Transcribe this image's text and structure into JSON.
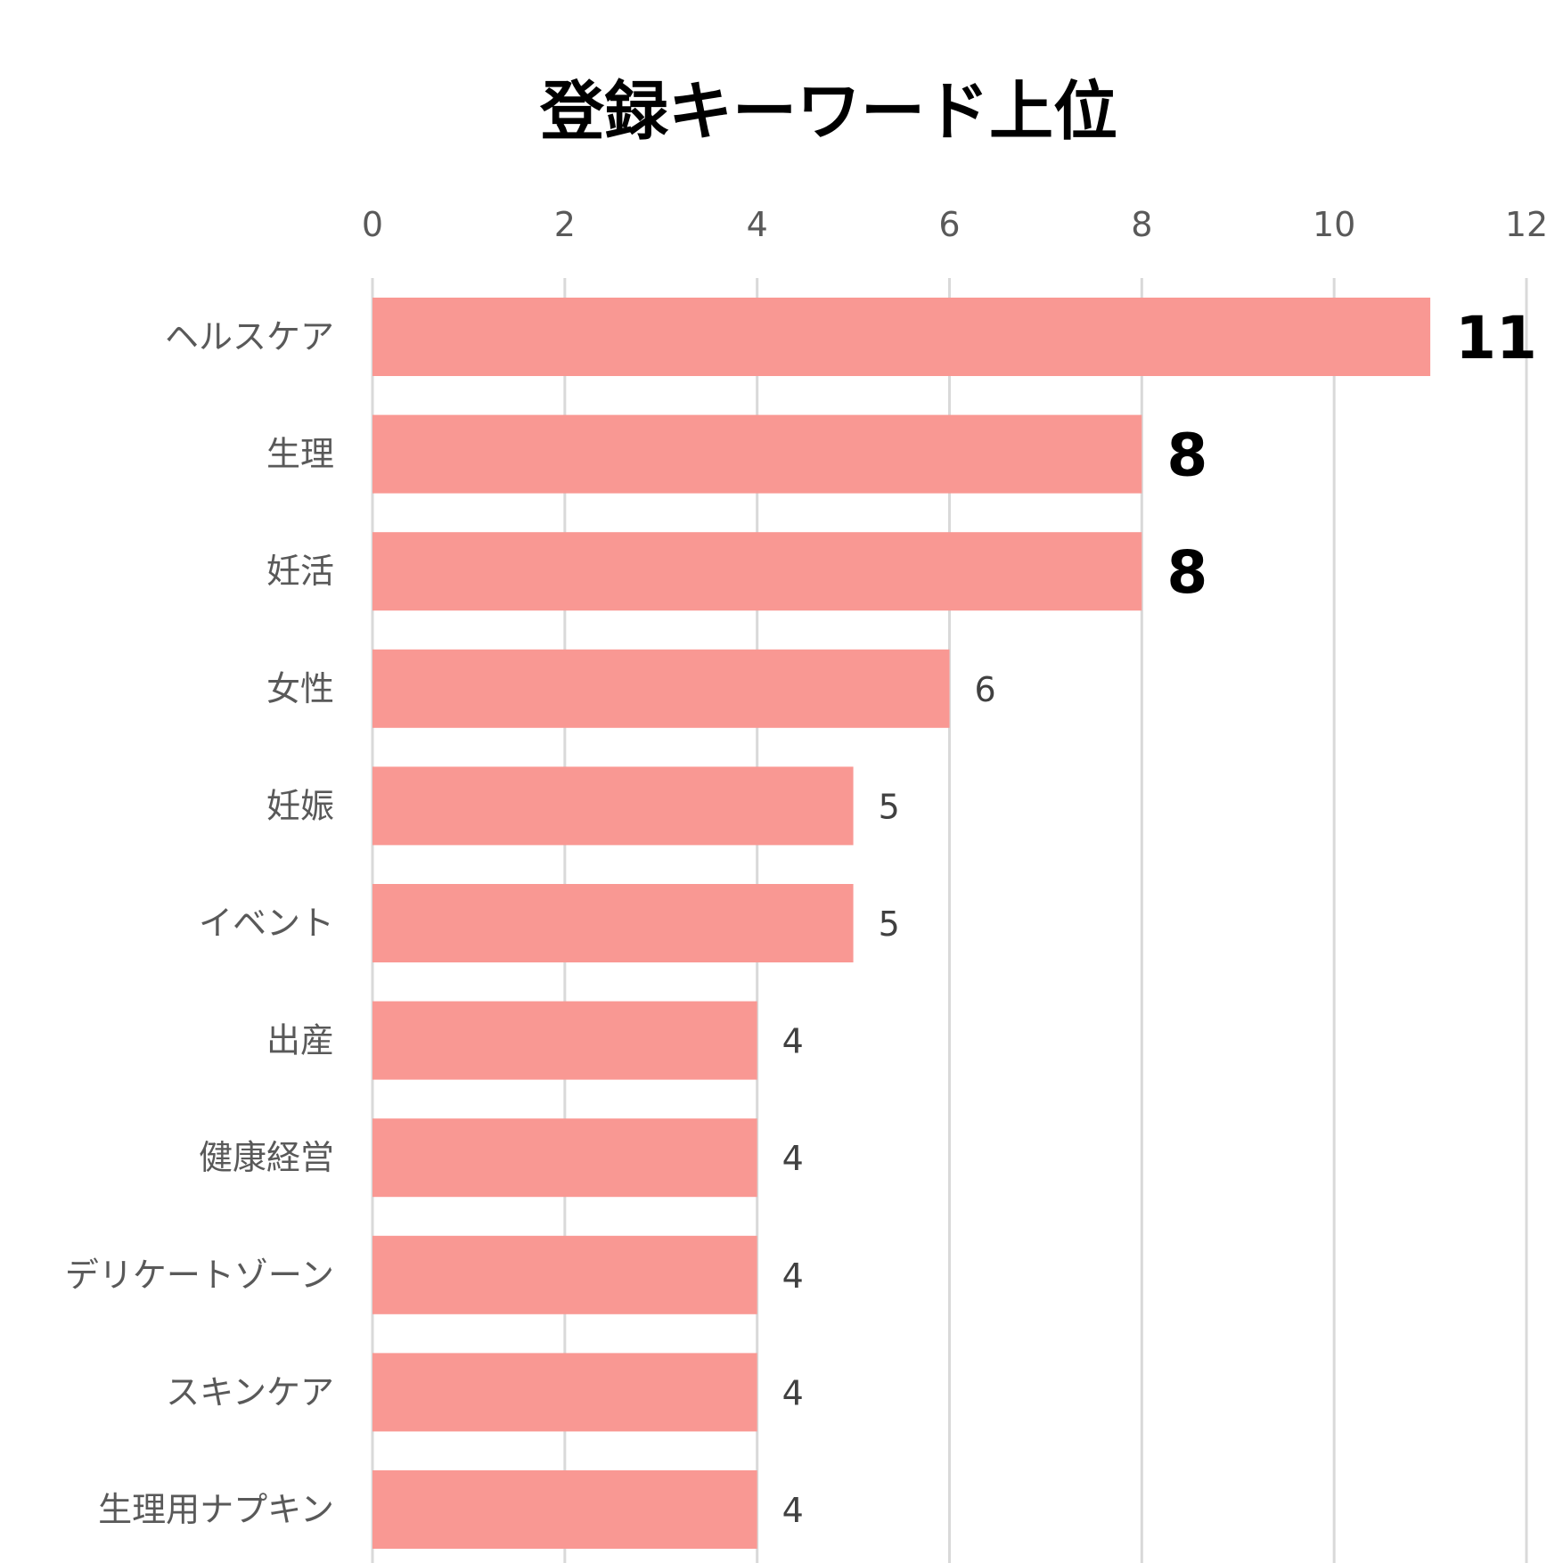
{
  "chart_data": {
    "type": "bar",
    "orientation": "horizontal",
    "title": "登録キーワード上位",
    "categories": [
      "ヘルスケア",
      "生理",
      "妊活",
      "女性",
      "妊娠",
      "イベント",
      "出産",
      "健康経営",
      "デリケートゾーン",
      "スキンケア",
      "生理用ナプキン"
    ],
    "values": [
      11,
      8,
      8,
      6,
      5,
      5,
      4,
      4,
      4,
      4,
      4
    ],
    "xlim": [
      0,
      12
    ],
    "ticks": [
      0,
      2,
      4,
      6,
      8,
      10,
      12
    ],
    "tick_labels": [
      "0",
      "2",
      "4",
      "6",
      "8",
      "10",
      "12"
    ],
    "data_labels": [
      "11",
      "8",
      "8",
      "6",
      "5",
      "5",
      "4",
      "4",
      "4",
      "4",
      "4"
    ],
    "emphasized_labels": [
      0,
      1,
      2
    ],
    "axis_position": "top",
    "grid": true,
    "legend": "none",
    "colors": {
      "bar": "#f99893",
      "grid": "#d9d9d9",
      "tick_text": "#595959"
    }
  }
}
